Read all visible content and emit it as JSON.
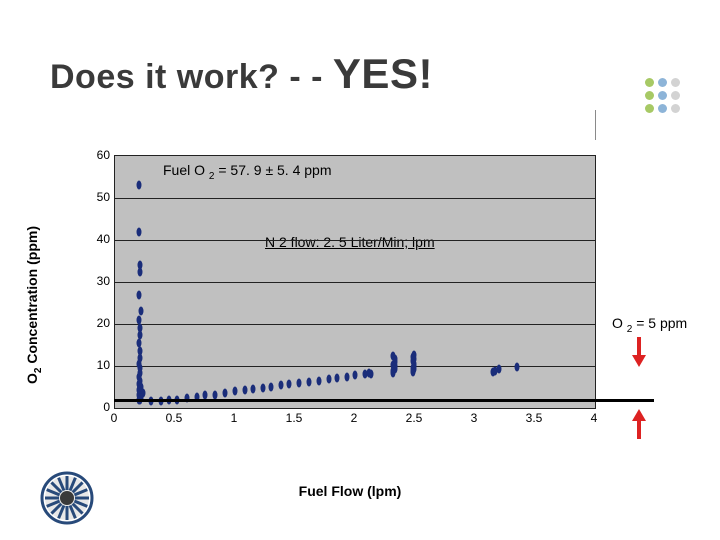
{
  "title_plain": "Does it work? - - ",
  "title_emph": "YES!",
  "deco_colors": [
    "#a7c965",
    "#8db4d8",
    "#d3d3d3"
  ],
  "chart": {
    "type": "scatter",
    "xlabel": "Fuel Flow (lpm)",
    "ylabel_html": "O<sub>2</sub> Concentration (ppm)",
    "background_color": "#c0c0c0",
    "grid_color": "#222222",
    "xlim": [
      0,
      4
    ],
    "ylim": [
      0,
      60
    ],
    "xtick_step": 0.5,
    "ytick_step": 10,
    "xticks": [
      "0",
      "0.5",
      "1",
      "1.5",
      "2",
      "2.5",
      "3",
      "3.5",
      "4"
    ],
    "yticks": [
      "0",
      "10",
      "20",
      "30",
      "40",
      "50",
      "60"
    ],
    "marker_color": "#1a2d7a",
    "annotations": {
      "fuel_o2_html": "Fuel O <sub>2</sub> = 57. 9 ± 5. 4 ppm",
      "n2_flow": "N 2 flow: 2. 5 Liter/Min; lpm",
      "o2_5ppm_html": "O <sub>2</sub> = 5 ppm"
    },
    "threshold_y_approx": 2,
    "points": [
      [
        0.2,
        53
      ],
      [
        0.2,
        42
      ],
      [
        0.21,
        34
      ],
      [
        0.21,
        32.5
      ],
      [
        0.2,
        27
      ],
      [
        0.22,
        23
      ],
      [
        0.2,
        21
      ],
      [
        0.21,
        19
      ],
      [
        0.21,
        17.5
      ],
      [
        0.2,
        15.5
      ],
      [
        0.21,
        13.5
      ],
      [
        0.21,
        12
      ],
      [
        0.2,
        10.5
      ],
      [
        0.21,
        9.5
      ],
      [
        0.21,
        8.3
      ],
      [
        0.2,
        7.3
      ],
      [
        0.21,
        6.4
      ],
      [
        0.2,
        5.7
      ],
      [
        0.22,
        5.1
      ],
      [
        0.2,
        4.3
      ],
      [
        0.21,
        3.9
      ],
      [
        0.23,
        3.5
      ],
      [
        0.2,
        3.0
      ],
      [
        0.21,
        2.5
      ],
      [
        0.22,
        2.3
      ],
      [
        0.2,
        2.0
      ],
      [
        0.21,
        1.8
      ],
      [
        0.3,
        1.7
      ],
      [
        0.38,
        1.7
      ],
      [
        0.45,
        1.9
      ],
      [
        0.52,
        2.0
      ],
      [
        0.6,
        2.4
      ],
      [
        0.68,
        2.6
      ],
      [
        0.75,
        3.0
      ],
      [
        0.83,
        3.1
      ],
      [
        0.92,
        3.5
      ],
      [
        1.0,
        4.0
      ],
      [
        1.08,
        4.2
      ],
      [
        1.15,
        4.5
      ],
      [
        1.23,
        4.8
      ],
      [
        1.3,
        5.1
      ],
      [
        1.38,
        5.4
      ],
      [
        1.45,
        5.7
      ],
      [
        1.53,
        5.9
      ],
      [
        1.62,
        6.2
      ],
      [
        1.7,
        6.5
      ],
      [
        1.78,
        6.9
      ],
      [
        1.85,
        7.1
      ],
      [
        1.93,
        7.5
      ],
      [
        2.0,
        7.9
      ],
      [
        2.08,
        8.0
      ],
      [
        2.13,
        8.2
      ],
      [
        2.12,
        8.4
      ],
      [
        2.32,
        8.4
      ],
      [
        2.32,
        8.9
      ],
      [
        2.33,
        9.3
      ],
      [
        2.33,
        9.8
      ],
      [
        2.32,
        10.3
      ],
      [
        2.33,
        10.9
      ],
      [
        2.33,
        11.6
      ],
      [
        2.32,
        12.4
      ],
      [
        2.33,
        10.0
      ],
      [
        2.48,
        8.5
      ],
      [
        2.48,
        8.8
      ],
      [
        2.49,
        9.2
      ],
      [
        2.48,
        9.6
      ],
      [
        2.49,
        10.1
      ],
      [
        2.49,
        10.5
      ],
      [
        2.48,
        11.1
      ],
      [
        2.49,
        11.6
      ],
      [
        2.48,
        12.1
      ],
      [
        2.49,
        12.7
      ],
      [
        3.15,
        8.5
      ],
      [
        3.17,
        8.8
      ],
      [
        3.2,
        9.3
      ],
      [
        3.35,
        9.8
      ]
    ]
  },
  "arrow_color": "#d22",
  "logo_colors": {
    "outer": "#284a7a",
    "inner": "#e8e8e8",
    "hub": "#3a3a3a"
  }
}
